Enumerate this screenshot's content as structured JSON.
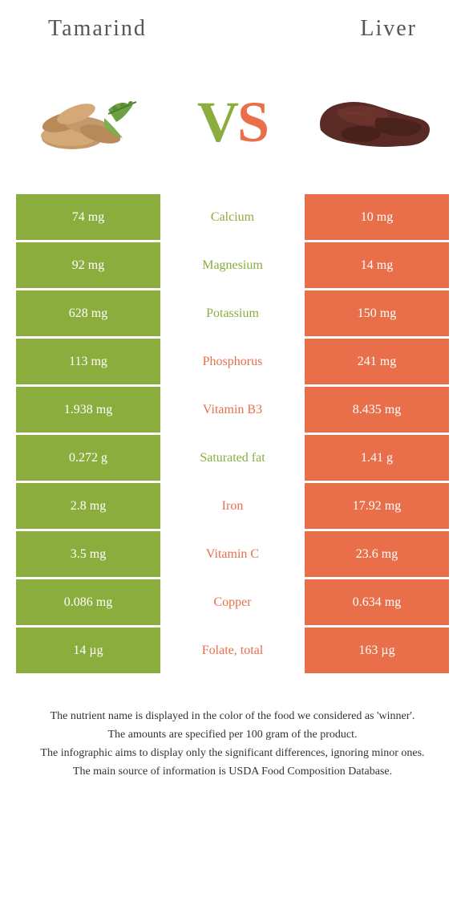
{
  "foods": {
    "left": {
      "name": "Tamarind",
      "color": "#8aad3e"
    },
    "right": {
      "name": "Liver",
      "color": "#e86f4a"
    }
  },
  "vs_label": {
    "v": "V",
    "s": "S"
  },
  "colors": {
    "left": "#8aad3e",
    "right": "#e86f4a",
    "row_bg": "#ffffff"
  },
  "rows": [
    {
      "left": "74 mg",
      "label": "Calcium",
      "right": "10 mg",
      "winner": "left"
    },
    {
      "left": "92 mg",
      "label": "Magnesium",
      "right": "14 mg",
      "winner": "left"
    },
    {
      "left": "628 mg",
      "label": "Potassium",
      "right": "150 mg",
      "winner": "left"
    },
    {
      "left": "113 mg",
      "label": "Phosphorus",
      "right": "241 mg",
      "winner": "right"
    },
    {
      "left": "1.938 mg",
      "label": "Vitamin B3",
      "right": "8.435 mg",
      "winner": "right"
    },
    {
      "left": "0.272 g",
      "label": "Saturated fat",
      "right": "1.41 g",
      "winner": "left"
    },
    {
      "left": "2.8 mg",
      "label": "Iron",
      "right": "17.92 mg",
      "winner": "right"
    },
    {
      "left": "3.5 mg",
      "label": "Vitamin C",
      "right": "23.6 mg",
      "winner": "right"
    },
    {
      "left": "0.086 mg",
      "label": "Copper",
      "right": "0.634 mg",
      "winner": "right"
    },
    {
      "left": "14 µg",
      "label": "Folate, total",
      "right": "163 µg",
      "winner": "right"
    }
  ],
  "footer": [
    "The nutrient name is displayed in the color of the food we considered as 'winner'.",
    "The amounts are specified per 100 gram of the product.",
    "The infographic aims to display only the significant differences, ignoring minor ones.",
    "The main source of information is USDA Food Composition Database."
  ]
}
